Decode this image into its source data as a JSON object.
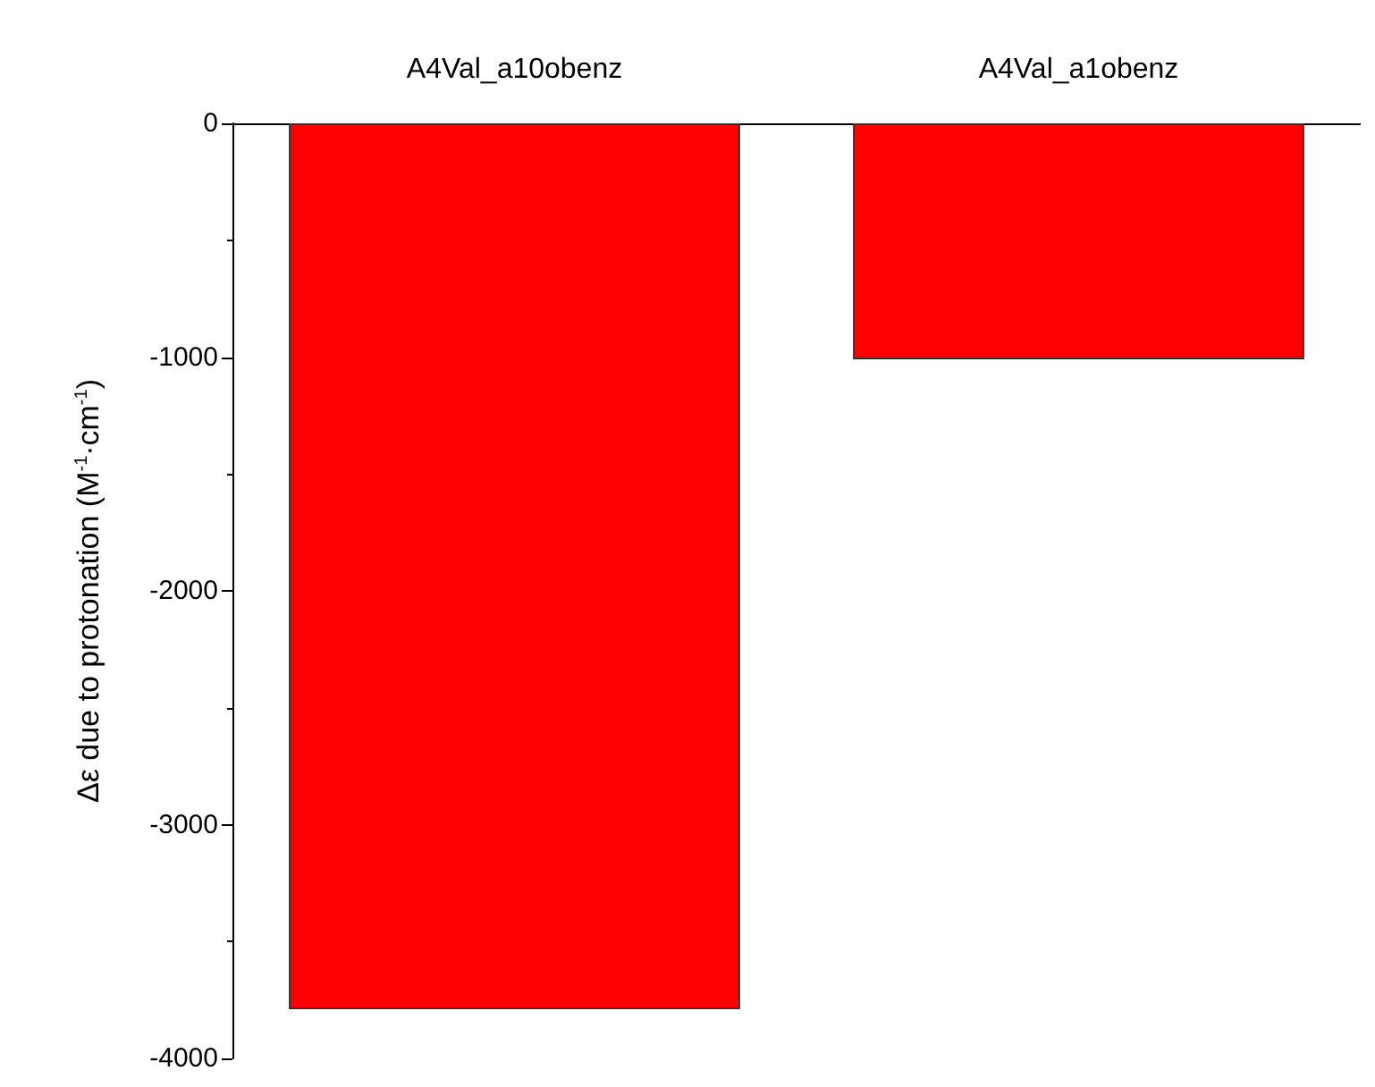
{
  "chart_data": {
    "type": "bar",
    "ylabel": "Δε due to protonation (M$^{-1}$·cm$^{-1}$)",
    "categories": [
      "A4Val_a10obenz",
      "A4Val_a1obenz"
    ],
    "series": [
      {
        "color": "#ff0000",
        "values": [
          -3790,
          -1010
        ]
      }
    ],
    "ylim": [
      -4000,
      0
    ],
    "yticks": [
      -4000,
      -3000,
      -2000,
      -1000,
      0
    ],
    "grid": false
  }
}
